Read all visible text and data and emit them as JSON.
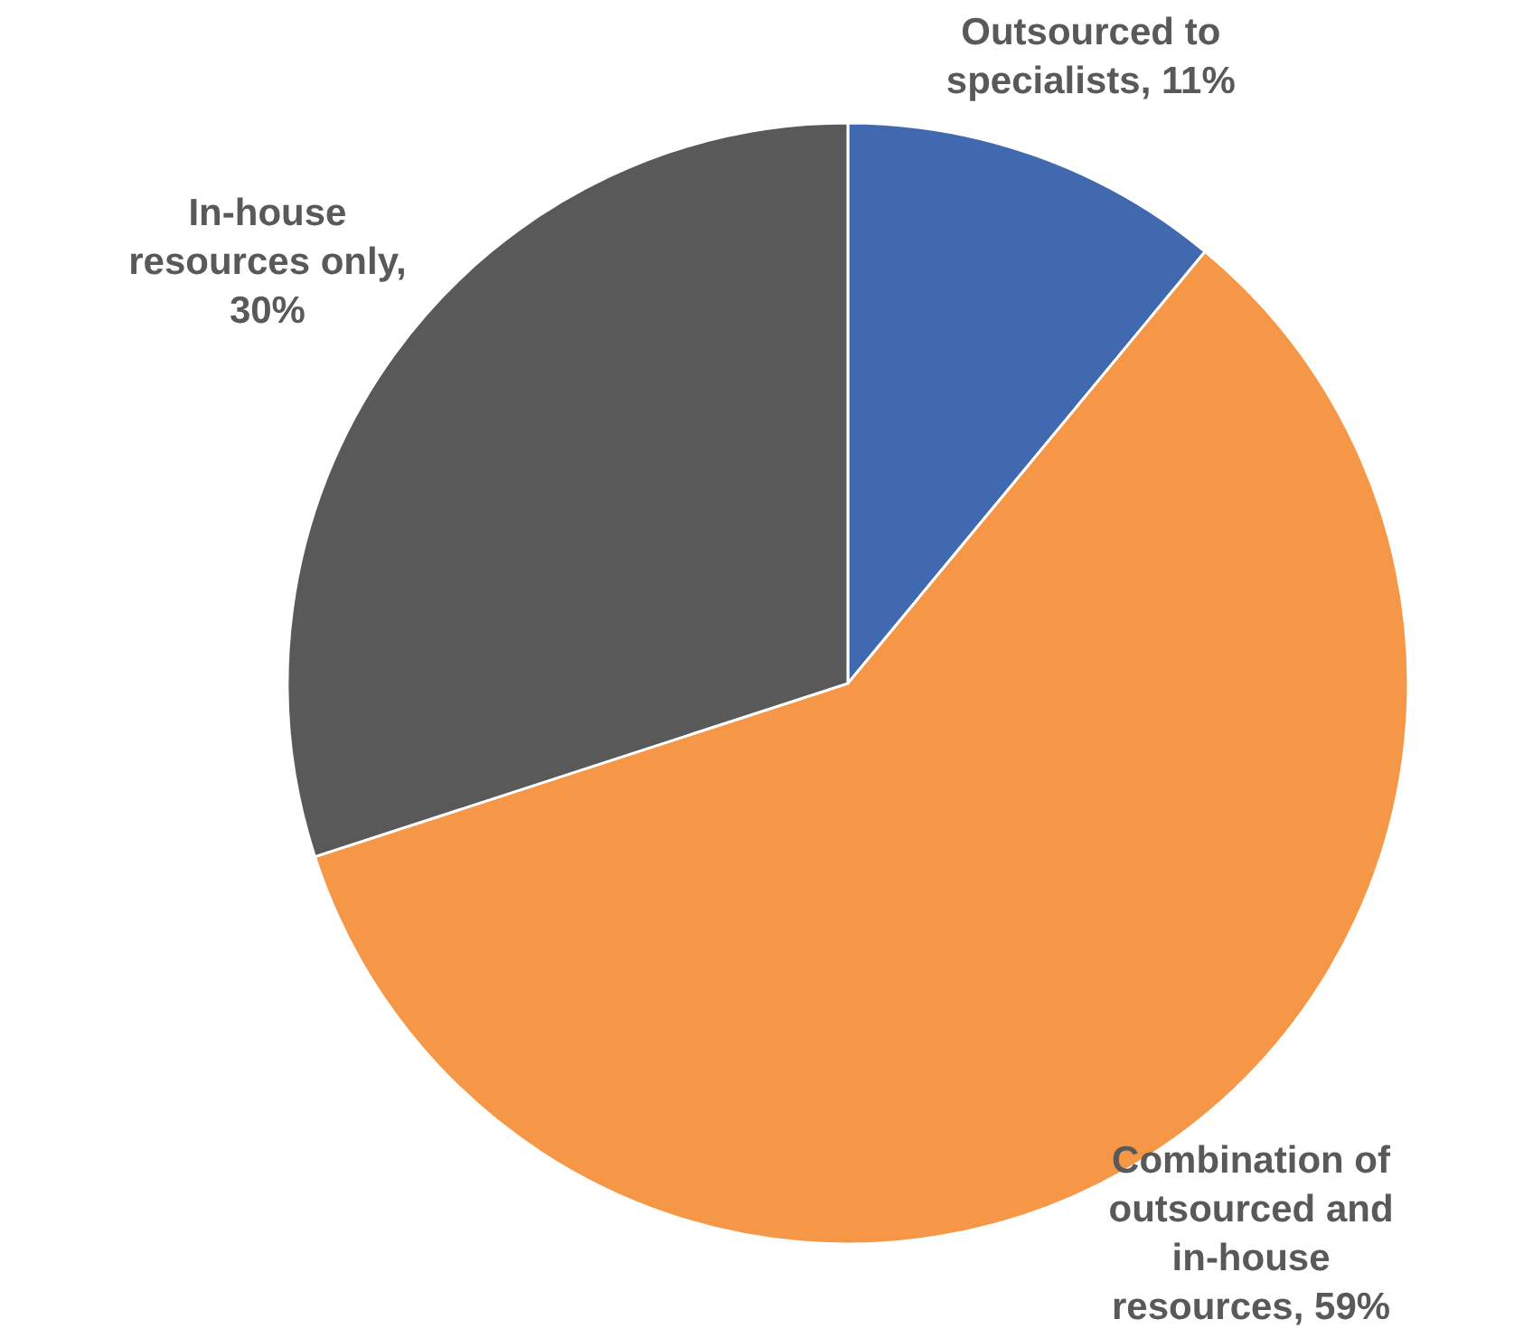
{
  "chart_data": {
    "type": "pie",
    "categories": [
      "Outsourced to specialists, 11%",
      "Combination of outsourced and in-house resources, 59%",
      "In-house resources only, 30%"
    ],
    "values": [
      11,
      59,
      30
    ],
    "colors": [
      "#4169b0",
      "#f69747",
      "#595959"
    ]
  }
}
